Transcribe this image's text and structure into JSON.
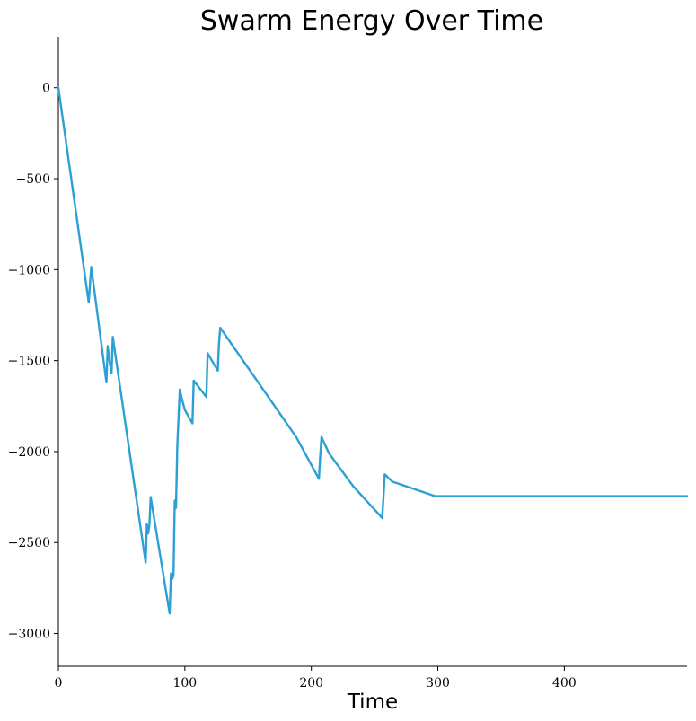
{
  "chart_data": {
    "type": "line",
    "title": "Swarm Energy Over Time",
    "xlabel": "Time",
    "ylabel": "",
    "xlim": [
      0,
      497
    ],
    "ylim": [
      -3180,
      280
    ],
    "xticks": [
      0,
      100,
      200,
      300,
      400
    ],
    "yticks": [
      0,
      -500,
      -1000,
      -1500,
      -2000,
      -2500,
      -3000
    ],
    "ytick_labels": [
      "0",
      "−500",
      "−1000",
      "−1500",
      "−2000",
      "−2500",
      "−3000"
    ],
    "grid": false,
    "color": "#2ca0d4",
    "series": [
      {
        "x": [
          0,
          24,
          25,
          26,
          38,
          39,
          40,
          42,
          43,
          69,
          70,
          71,
          72,
          73,
          88,
          89,
          90,
          91,
          92,
          93,
          94,
          96,
          98,
          100,
          103,
          106,
          107,
          117,
          118,
          126,
          127,
          128,
          188,
          206,
          207,
          208,
          214,
          233,
          256,
          257,
          258,
          264,
          298,
          497
        ],
        "y": [
          0,
          -1180,
          -1080,
          -985,
          -1620,
          -1420,
          -1480,
          -1570,
          -1370,
          -2610,
          -2400,
          -2450,
          -2400,
          -2250,
          -2890,
          -2670,
          -2700,
          -2680,
          -2270,
          -2310,
          -1970,
          -1660,
          -1720,
          -1770,
          -1810,
          -1845,
          -1610,
          -1700,
          -1460,
          -1555,
          -1400,
          -1320,
          -1920,
          -2150,
          -2030,
          -1920,
          -2010,
          -2190,
          -2365,
          -2250,
          -2125,
          -2165,
          -2245,
          -2245
        ]
      }
    ]
  }
}
